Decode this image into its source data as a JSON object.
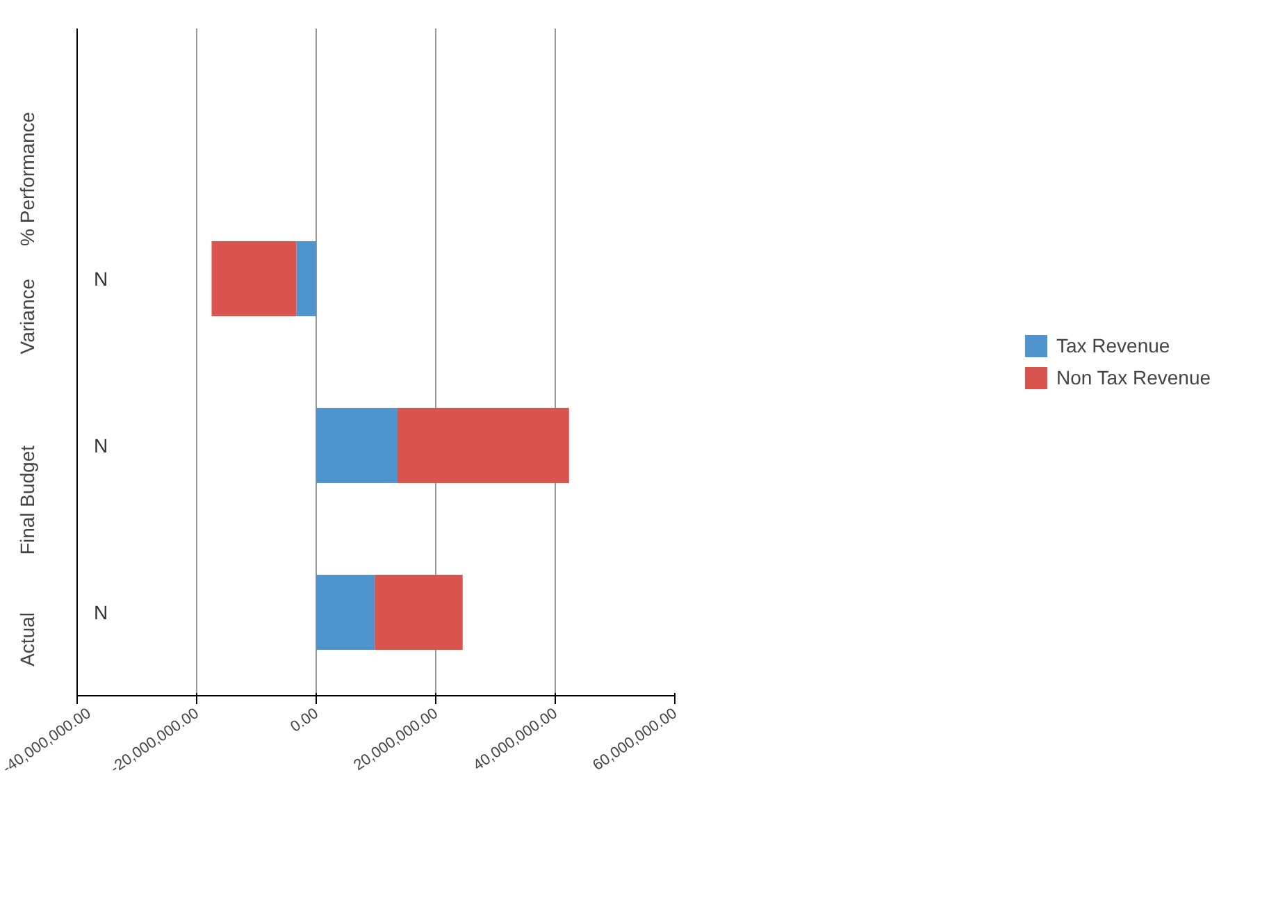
{
  "chart_data": {
    "type": "bar",
    "orientation": "horizontal",
    "stacked": true,
    "categories": [
      "% Performance",
      "Variance",
      "Final Budget",
      "Actual"
    ],
    "series": [
      {
        "name": "Tax Revenue",
        "color": "#4f94cd",
        "values": [
          null,
          -3300000,
          13600000,
          9800000
        ]
      },
      {
        "name": "Non Tax Revenue",
        "color": "#d9534f",
        "values": [
          null,
          -14200000,
          28700000,
          14700000
        ]
      }
    ],
    "xlim": [
      -40000000,
      60000000
    ],
    "xticks": [
      {
        "value": -40000000,
        "label": "-40,000,000.00"
      },
      {
        "value": -20000000,
        "label": "-20,000,000.00"
      },
      {
        "value": 0,
        "label": "0.00"
      },
      {
        "value": 20000000,
        "label": "20,000,000.00"
      },
      {
        "value": 40000000,
        "label": "40,000,000.00"
      },
      {
        "value": 60000000,
        "label": "60,000,000.00"
      }
    ],
    "annotations": [
      "N",
      "N",
      "N"
    ],
    "grid": "x",
    "legend": "right"
  }
}
